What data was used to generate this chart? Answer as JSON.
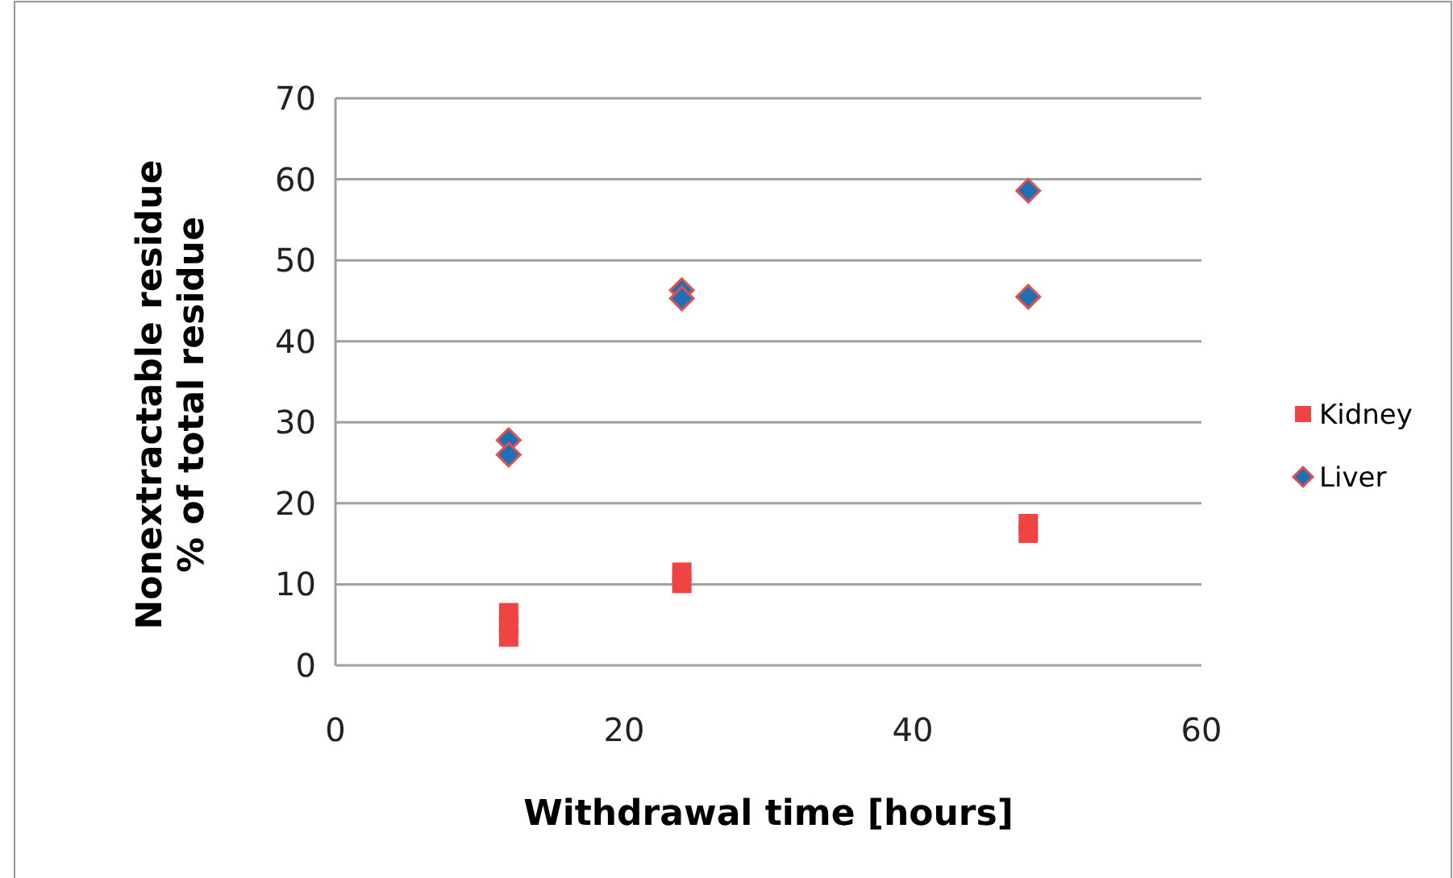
{
  "chart_data": {
    "type": "scatter",
    "xlabel": "Withdrawal time [hours]",
    "ylabel": "Nonextractable residue\n% of total residue",
    "xlim": [
      0,
      60
    ],
    "ylim": [
      0,
      70
    ],
    "xticks": [
      0,
      20,
      40,
      60
    ],
    "yticks": [
      0,
      10,
      20,
      30,
      40,
      50,
      60,
      70
    ],
    "grid": "y",
    "legend": "right",
    "series": [
      {
        "name": "Kidney",
        "color": "#f04444",
        "marker": "square",
        "x": [
          12,
          12,
          12,
          24,
          24,
          48,
          48
        ],
        "values": [
          3.5,
          5,
          6.5,
          10.1,
          11.5,
          16.3,
          17.5
        ]
      },
      {
        "name": "Liver",
        "color": "#1f6fb5",
        "marker": "diamond",
        "x": [
          12,
          12,
          24,
          24,
          48,
          48
        ],
        "values": [
          27.8,
          26,
          46.3,
          45.3,
          58.6,
          45.5
        ]
      }
    ]
  }
}
